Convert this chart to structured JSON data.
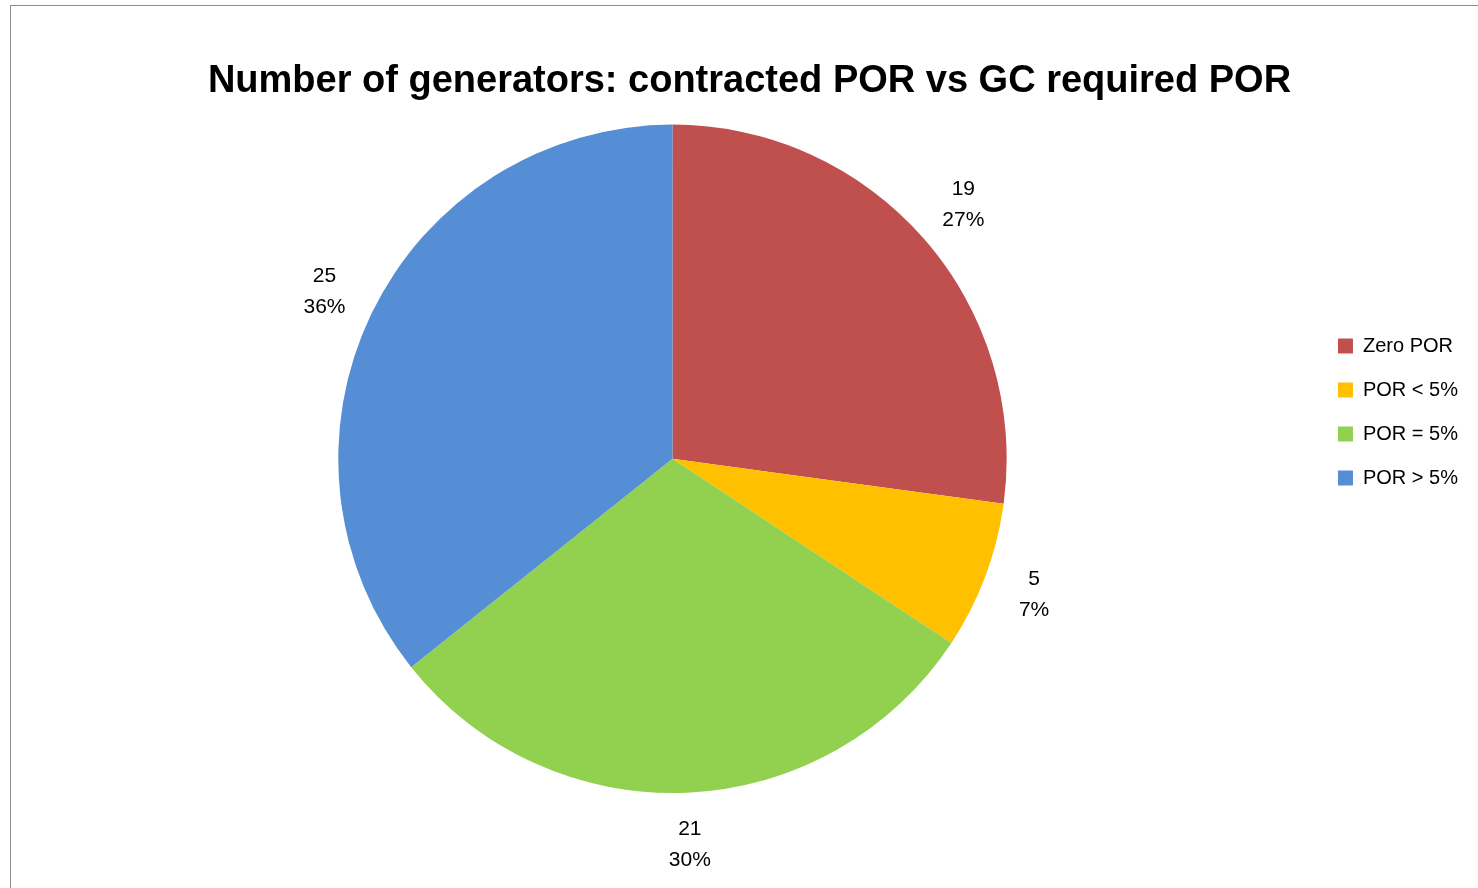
{
  "chart_data": {
    "type": "pie",
    "title": "Number of generators: contracted POR vs GC required POR",
    "categories": [
      "Zero POR",
      "POR < 5%",
      "POR = 5%",
      "POR > 5%"
    ],
    "values": [
      19,
      5,
      21,
      25
    ],
    "colors": [
      "#c0504d",
      "#ffc000",
      "#92d050",
      "#558ed5"
    ],
    "value_labels": [
      "19\n27%",
      "5\n7%",
      "21\n30%",
      "25\n36%"
    ],
    "legend": "right"
  }
}
